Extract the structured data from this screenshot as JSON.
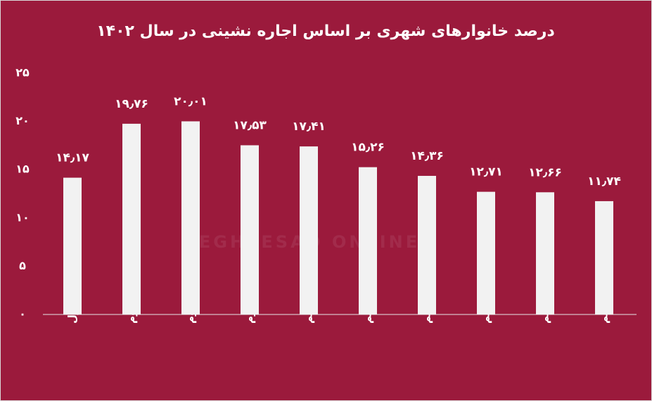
{
  "chart_data": {
    "type": "bar",
    "title": "درصد خانوارهای شهری بر اساس اجاره نشینی در سال ۱۴۰۲",
    "watermark": "EGHTESAD ONLINE",
    "categories": [
      "دهک اول",
      "دهک دوم",
      "دهک سوم",
      "دهک چهارم",
      "دهک پنجم",
      "دهک ششم",
      "دهک هفتم",
      "دهک هشتم",
      "دهک نهم",
      "دهک دهم"
    ],
    "values": [
      14.17,
      19.76,
      20.01,
      17.53,
      17.41,
      15.26,
      14.36,
      12.71,
      12.66,
      11.74
    ],
    "value_labels": [
      "۱۴٫۱۷",
      "۱۹٫۷۶",
      "۲۰٫۰۱",
      "۱۷٫۵۳",
      "۱۷٫۴۱",
      "۱۵٫۲۶",
      "۱۴٫۳۶",
      "۱۲٫۷۱",
      "۱۲٫۶۶",
      "۱۱٫۷۴"
    ],
    "color": "#f2f2f2",
    "background": "#9b1a3c",
    "ylim": [
      0,
      25
    ],
    "yticks": [
      {
        "value": 0,
        "label": "۰"
      },
      {
        "value": 5,
        "label": "۵"
      },
      {
        "value": 10,
        "label": "۱۰"
      },
      {
        "value": 15,
        "label": "۱۵"
      },
      {
        "value": 20,
        "label": "۲۰"
      },
      {
        "value": 25,
        "label": "۲۵"
      }
    ],
    "grid": false
  }
}
